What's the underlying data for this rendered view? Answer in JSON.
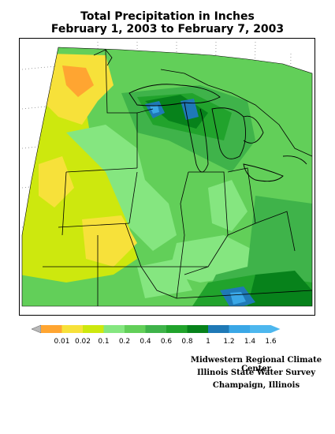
{
  "title": {
    "line1": "Total Precipitation in Inches",
    "line2": "February 1, 2003 to February 7, 2003"
  },
  "legend": {
    "bins": [
      {
        "label": "0.01",
        "color": "#ffa531"
      },
      {
        "label": "0.02",
        "color": "#f7e13a"
      },
      {
        "label": "0.1",
        "color": "#cde80e"
      },
      {
        "label": "0.2",
        "color": "#85e680"
      },
      {
        "label": "0.4",
        "color": "#62cf59"
      },
      {
        "label": "0.6",
        "color": "#3fb34a"
      },
      {
        "label": "0.8",
        "color": "#21a32c"
      },
      {
        "label": "1",
        "color": "#07821b"
      },
      {
        "label": "1.2",
        "color": "#1f79b6"
      },
      {
        "label": "1.4",
        "color": "#3aa7e6"
      },
      {
        "label": "1.6",
        "color": "#4db7ee"
      }
    ],
    "low_color": "#b8b8b8"
  },
  "credits": {
    "line1": "Midwestern Regional Climate Center",
    "line2": "Illinois State Water Survey",
    "line3": "Champaign, Illinois"
  }
}
